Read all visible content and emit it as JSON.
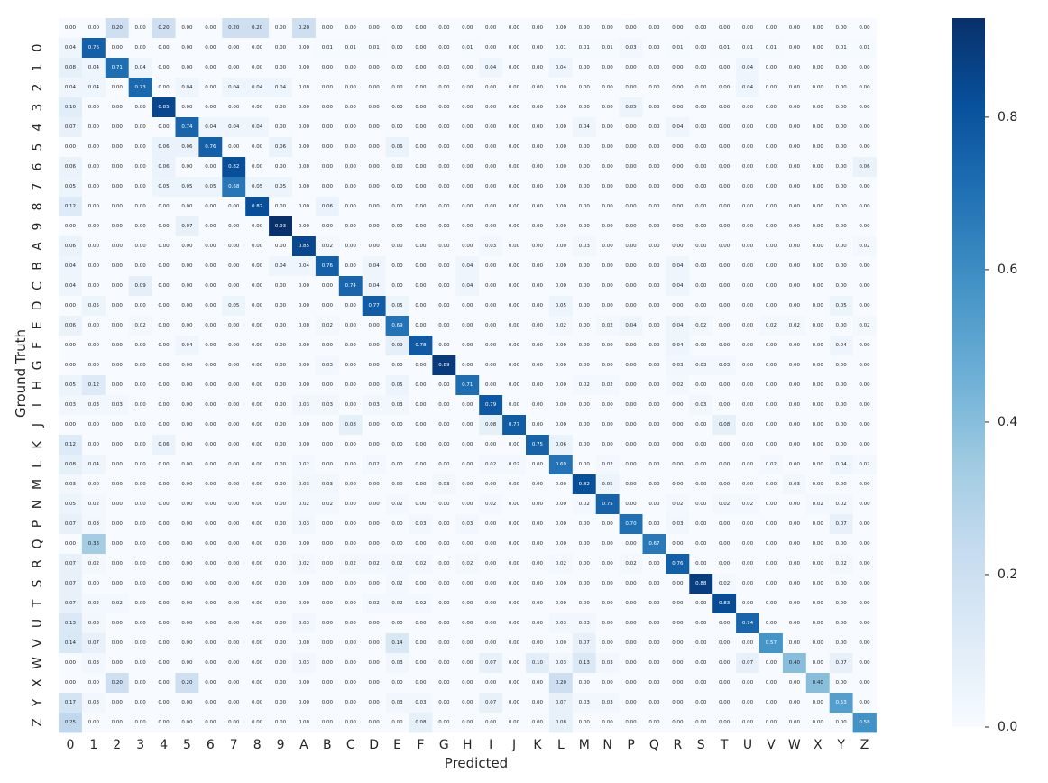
{
  "chart_data": {
    "type": "heatmap",
    "title": "",
    "xlabel": "Predicted",
    "ylabel": "Ground Truth",
    "x_tick_labels": [
      "0",
      "1",
      "2",
      "3",
      "4",
      "5",
      "6",
      "7",
      "8",
      "9",
      "A",
      "B",
      "C",
      "D",
      "E",
      "F",
      "G",
      "H",
      "I",
      "J",
      "K",
      "L",
      "M",
      "N",
      "P",
      "Q",
      "R",
      "S",
      "T",
      "U",
      "V",
      "W",
      "X",
      "Y",
      "Z"
    ],
    "y_tick_labels": [
      "",
      "0",
      "1",
      "2",
      "3",
      "4",
      "5",
      "6",
      "7",
      "8",
      "9",
      "A",
      "B",
      "C",
      "D",
      "E",
      "F",
      "G",
      "H",
      "I",
      "J",
      "K",
      "L",
      "M",
      "N",
      "P",
      "Q",
      "R",
      "S",
      "T",
      "U",
      "V",
      "W",
      "X",
      "Y",
      "Z"
    ],
    "colorbar": {
      "min": 0.0,
      "max": 0.93,
      "ticks": [
        0.0,
        0.2,
        0.4,
        0.6,
        0.8
      ],
      "tick_labels": [
        "0.0",
        "0.2",
        "0.4",
        "0.6",
        "0.8"
      ],
      "colormap": "Blues"
    },
    "cell_entries": [
      [
        0,
        0,
        0.0
      ],
      [
        0,
        2,
        0.2
      ],
      [
        0,
        4,
        0.2
      ],
      [
        0,
        7,
        0.2
      ],
      [
        0,
        8,
        0.2
      ],
      [
        0,
        10,
        0.2
      ],
      [
        1,
        0,
        0.04
      ],
      [
        1,
        1,
        0.76
      ],
      [
        1,
        11,
        0.01
      ],
      [
        1,
        12,
        0.01
      ],
      [
        1,
        13,
        0.01
      ],
      [
        1,
        17,
        0.01
      ],
      [
        1,
        21,
        0.01
      ],
      [
        1,
        22,
        0.01
      ],
      [
        1,
        23,
        0.01
      ],
      [
        1,
        24,
        0.03
      ],
      [
        1,
        26,
        0.01
      ],
      [
        1,
        28,
        0.01
      ],
      [
        1,
        29,
        0.01
      ],
      [
        1,
        30,
        0.01
      ],
      [
        1,
        33,
        0.01
      ],
      [
        1,
        34,
        0.01
      ],
      [
        2,
        0,
        0.08
      ],
      [
        2,
        1,
        0.04
      ],
      [
        2,
        2,
        0.71
      ],
      [
        2,
        3,
        0.04
      ],
      [
        2,
        18,
        0.04
      ],
      [
        2,
        21,
        0.04
      ],
      [
        2,
        29,
        0.04
      ],
      [
        3,
        0,
        0.04
      ],
      [
        3,
        1,
        0.04
      ],
      [
        3,
        3,
        0.73
      ],
      [
        3,
        5,
        0.04
      ],
      [
        3,
        7,
        0.04
      ],
      [
        3,
        8,
        0.04
      ],
      [
        3,
        9,
        0.04
      ],
      [
        3,
        29,
        0.04
      ],
      [
        4,
        0,
        0.1
      ],
      [
        4,
        4,
        0.85
      ],
      [
        4,
        24,
        0.05
      ],
      [
        5,
        0,
        0.07
      ],
      [
        5,
        5,
        0.74
      ],
      [
        5,
        6,
        0.04
      ],
      [
        5,
        7,
        0.04
      ],
      [
        5,
        8,
        0.04
      ],
      [
        5,
        22,
        0.04
      ],
      [
        5,
        26,
        0.04
      ],
      [
        6,
        4,
        0.06
      ],
      [
        6,
        5,
        0.06
      ],
      [
        6,
        6,
        0.76
      ],
      [
        6,
        9,
        0.06
      ],
      [
        6,
        14,
        0.06
      ],
      [
        7,
        0,
        0.06
      ],
      [
        7,
        4,
        0.06
      ],
      [
        7,
        7,
        0.82
      ],
      [
        7,
        34,
        0.06
      ],
      [
        8,
        0,
        0.05
      ],
      [
        8,
        4,
        0.05
      ],
      [
        8,
        5,
        0.05
      ],
      [
        8,
        6,
        0.05
      ],
      [
        8,
        7,
        0.68
      ],
      [
        8,
        8,
        0.05
      ],
      [
        8,
        9,
        0.05
      ],
      [
        9,
        0,
        0.12
      ],
      [
        9,
        8,
        0.82
      ],
      [
        9,
        11,
        0.06
      ],
      [
        10,
        5,
        0.07
      ],
      [
        10,
        9,
        0.93
      ],
      [
        11,
        0,
        0.06
      ],
      [
        11,
        10,
        0.85
      ],
      [
        11,
        11,
        0.02
      ],
      [
        11,
        18,
        0.03
      ],
      [
        11,
        22,
        0.03
      ],
      [
        11,
        34,
        0.02
      ],
      [
        12,
        0,
        0.04
      ],
      [
        12,
        9,
        0.04
      ],
      [
        12,
        10,
        0.04
      ],
      [
        12,
        11,
        0.76
      ],
      [
        12,
        13,
        0.04
      ],
      [
        12,
        17,
        0.04
      ],
      [
        12,
        26,
        0.04
      ],
      [
        13,
        0,
        0.04
      ],
      [
        13,
        3,
        0.09
      ],
      [
        13,
        12,
        0.74
      ],
      [
        13,
        13,
        0.04
      ],
      [
        13,
        17,
        0.04
      ],
      [
        13,
        26,
        0.04
      ],
      [
        14,
        1,
        0.05
      ],
      [
        14,
        7,
        0.05
      ],
      [
        14,
        13,
        0.77
      ],
      [
        14,
        14,
        0.05
      ],
      [
        14,
        21,
        0.05
      ],
      [
        14,
        33,
        0.05
      ],
      [
        15,
        0,
        0.06
      ],
      [
        15,
        3,
        0.02
      ],
      [
        15,
        11,
        0.02
      ],
      [
        15,
        14,
        0.69
      ],
      [
        15,
        21,
        0.02
      ],
      [
        15,
        23,
        0.02
      ],
      [
        15,
        24,
        0.04
      ],
      [
        15,
        26,
        0.04
      ],
      [
        15,
        27,
        0.02
      ],
      [
        15,
        30,
        0.02
      ],
      [
        15,
        31,
        0.02
      ],
      [
        15,
        34,
        0.02
      ],
      [
        16,
        5,
        0.04
      ],
      [
        16,
        14,
        0.09
      ],
      [
        16,
        15,
        0.78
      ],
      [
        16,
        26,
        0.04
      ],
      [
        16,
        33,
        0.04
      ],
      [
        17,
        11,
        0.03
      ],
      [
        17,
        16,
        0.89
      ],
      [
        17,
        26,
        0.03
      ],
      [
        17,
        27,
        0.03
      ],
      [
        17,
        28,
        0.03
      ],
      [
        18,
        0,
        0.05
      ],
      [
        18,
        1,
        0.12
      ],
      [
        18,
        14,
        0.05
      ],
      [
        18,
        17,
        0.71
      ],
      [
        18,
        22,
        0.02
      ],
      [
        18,
        23,
        0.02
      ],
      [
        18,
        26,
        0.02
      ],
      [
        19,
        0,
        0.03
      ],
      [
        19,
        1,
        0.03
      ],
      [
        19,
        2,
        0.03
      ],
      [
        19,
        10,
        0.03
      ],
      [
        19,
        11,
        0.03
      ],
      [
        19,
        13,
        0.03
      ],
      [
        19,
        14,
        0.03
      ],
      [
        19,
        18,
        0.79
      ],
      [
        19,
        27,
        0.03
      ],
      [
        20,
        12,
        0.08
      ],
      [
        20,
        18,
        0.08
      ],
      [
        20,
        19,
        0.77
      ],
      [
        20,
        28,
        0.08
      ],
      [
        21,
        0,
        0.12
      ],
      [
        21,
        4,
        0.06
      ],
      [
        21,
        20,
        0.75
      ],
      [
        21,
        21,
        0.06
      ],
      [
        22,
        0,
        0.08
      ],
      [
        22,
        1,
        0.04
      ],
      [
        22,
        10,
        0.02
      ],
      [
        22,
        13,
        0.02
      ],
      [
        22,
        18,
        0.02
      ],
      [
        22,
        19,
        0.02
      ],
      [
        22,
        21,
        0.69
      ],
      [
        22,
        23,
        0.02
      ],
      [
        22,
        30,
        0.02
      ],
      [
        22,
        33,
        0.04
      ],
      [
        22,
        34,
        0.02
      ],
      [
        23,
        0,
        0.03
      ],
      [
        23,
        10,
        0.03
      ],
      [
        23,
        11,
        0.03
      ],
      [
        23,
        16,
        0.03
      ],
      [
        23,
        22,
        0.82
      ],
      [
        23,
        23,
        0.05
      ],
      [
        23,
        31,
        0.03
      ],
      [
        24,
        0,
        0.05
      ],
      [
        24,
        1,
        0.02
      ],
      [
        24,
        10,
        0.02
      ],
      [
        24,
        11,
        0.02
      ],
      [
        24,
        14,
        0.02
      ],
      [
        24,
        18,
        0.02
      ],
      [
        24,
        22,
        0.02
      ],
      [
        24,
        23,
        0.75
      ],
      [
        24,
        26,
        0.02
      ],
      [
        24,
        28,
        0.02
      ],
      [
        24,
        29,
        0.02
      ],
      [
        24,
        32,
        0.02
      ],
      [
        24,
        33,
        0.02
      ],
      [
        25,
        0,
        0.07
      ],
      [
        25,
        1,
        0.03
      ],
      [
        25,
        10,
        0.03
      ],
      [
        25,
        15,
        0.03
      ],
      [
        25,
        17,
        0.03
      ],
      [
        25,
        24,
        0.7
      ],
      [
        25,
        26,
        0.03
      ],
      [
        25,
        33,
        0.07
      ],
      [
        26,
        1,
        0.33
      ],
      [
        26,
        25,
        0.67
      ],
      [
        27,
        0,
        0.07
      ],
      [
        27,
        1,
        0.02
      ],
      [
        27,
        10,
        0.02
      ],
      [
        27,
        12,
        0.02
      ],
      [
        27,
        13,
        0.02
      ],
      [
        27,
        14,
        0.02
      ],
      [
        27,
        15,
        0.02
      ],
      [
        27,
        17,
        0.02
      ],
      [
        27,
        21,
        0.02
      ],
      [
        27,
        24,
        0.02
      ],
      [
        27,
        26,
        0.76
      ],
      [
        27,
        33,
        0.02
      ],
      [
        28,
        0,
        0.07
      ],
      [
        28,
        14,
        0.02
      ],
      [
        28,
        27,
        0.88
      ],
      [
        28,
        28,
        0.02
      ],
      [
        29,
        0,
        0.07
      ],
      [
        29,
        1,
        0.02
      ],
      [
        29,
        2,
        0.02
      ],
      [
        29,
        13,
        0.02
      ],
      [
        29,
        14,
        0.02
      ],
      [
        29,
        15,
        0.02
      ],
      [
        29,
        28,
        0.83
      ],
      [
        30,
        0,
        0.13
      ],
      [
        30,
        1,
        0.03
      ],
      [
        30,
        10,
        0.03
      ],
      [
        30,
        21,
        0.03
      ],
      [
        30,
        22,
        0.03
      ],
      [
        30,
        29,
        0.74
      ],
      [
        31,
        0,
        0.14
      ],
      [
        31,
        1,
        0.07
      ],
      [
        31,
        14,
        0.14
      ],
      [
        31,
        22,
        0.07
      ],
      [
        31,
        30,
        0.57
      ],
      [
        32,
        1,
        0.03
      ],
      [
        32,
        10,
        0.03
      ],
      [
        32,
        14,
        0.03
      ],
      [
        32,
        18,
        0.07
      ],
      [
        32,
        20,
        0.1
      ],
      [
        32,
        21,
        0.03
      ],
      [
        32,
        22,
        0.13
      ],
      [
        32,
        23,
        0.03
      ],
      [
        32,
        29,
        0.07
      ],
      [
        32,
        31,
        0.4
      ],
      [
        32,
        33,
        0.07
      ],
      [
        33,
        2,
        0.2
      ],
      [
        33,
        5,
        0.2
      ],
      [
        33,
        21,
        0.2
      ],
      [
        33,
        32,
        0.4
      ],
      [
        34,
        0,
        0.17
      ],
      [
        34,
        1,
        0.03
      ],
      [
        34,
        14,
        0.03
      ],
      [
        34,
        15,
        0.03
      ],
      [
        34,
        18,
        0.07
      ],
      [
        34,
        21,
        0.07
      ],
      [
        34,
        22,
        0.03
      ],
      [
        34,
        23,
        0.03
      ],
      [
        34,
        33,
        0.53
      ],
      [
        35,
        0,
        0.25
      ],
      [
        35,
        15,
        0.08
      ],
      [
        35,
        21,
        0.08
      ],
      [
        35,
        34,
        0.58
      ]
    ]
  }
}
